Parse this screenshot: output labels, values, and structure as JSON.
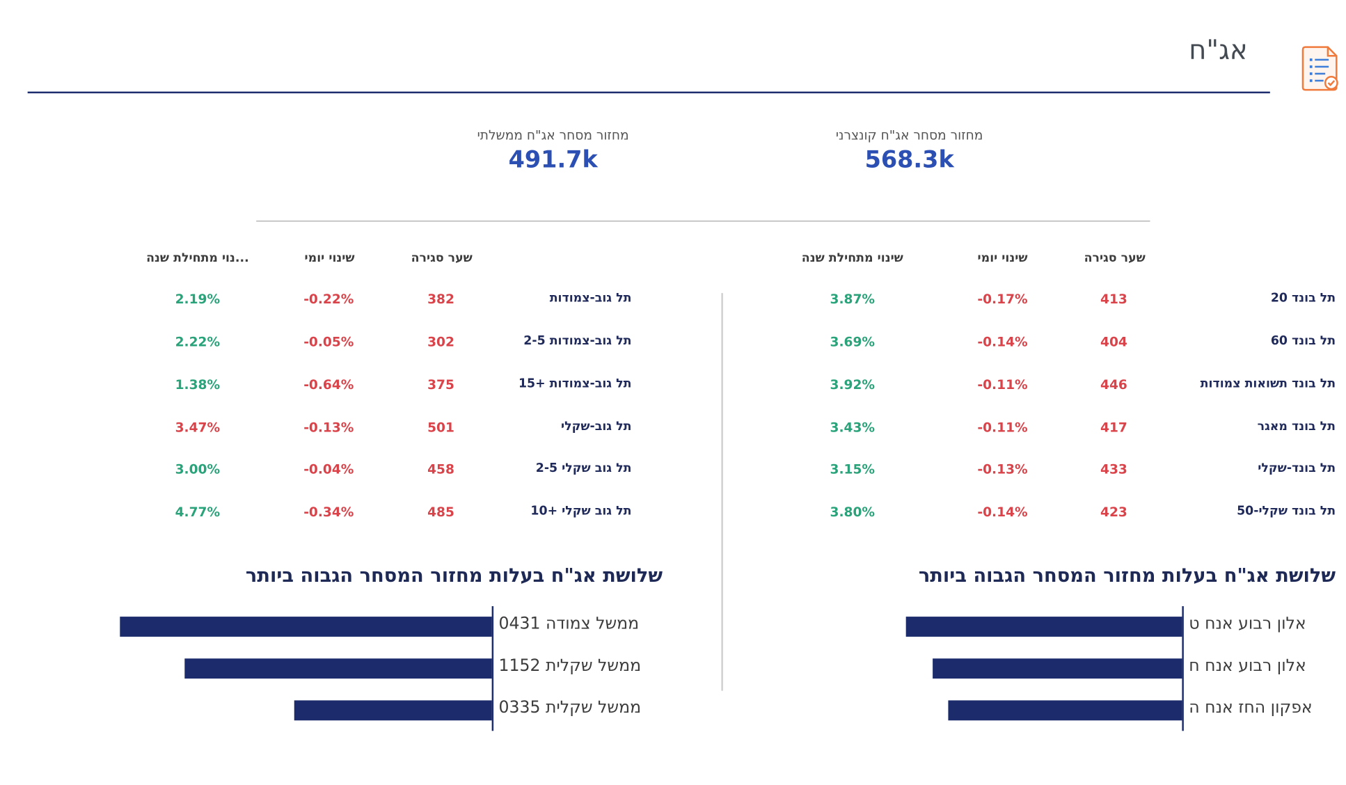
{
  "header": {
    "title": "אג\"ח"
  },
  "kpis": {
    "corporate_label": "מחזור מסחר אג\"ח קונצרני",
    "corporate_value": "568.3k",
    "government_label": "מחזור מסחר אג\"ח ממשלתי",
    "government_value": "491.7k"
  },
  "right_table": {
    "headers": {
      "close": "שער סגירה",
      "daily": "שינוי יומי",
      "ytd": "שינוי מתחילת שנה"
    },
    "rows": [
      {
        "name": "תל בונד 20",
        "close": "413",
        "daily": "-0.17%",
        "ytd": "3.87%"
      },
      {
        "name": "תל בונד 60",
        "close": "404",
        "daily": "-0.14%",
        "ytd": "3.69%"
      },
      {
        "name": "תל בונד תשואות צמודות",
        "close": "446",
        "daily": "-0.11%",
        "ytd": "3.92%"
      },
      {
        "name": "תל בונד מאגר",
        "close": "417",
        "daily": "-0.11%",
        "ytd": "3.43%"
      },
      {
        "name": "תל בונד-שקלי",
        "close": "433",
        "daily": "-0.13%",
        "ytd": "3.15%"
      },
      {
        "name": "תל בונד שקלי-50",
        "close": "423",
        "daily": "-0.14%",
        "ytd": "3.80%"
      }
    ]
  },
  "left_table": {
    "headers": {
      "close": "שער סגירה",
      "daily": "שינוי יומי",
      "ytd": "...נוי מתחילת שנה"
    },
    "rows": [
      {
        "name": "תל גוב-צמודות",
        "close": "382",
        "daily": "-0.22%",
        "ytd": "2.19%"
      },
      {
        "name": "תל גוב-צמודות 2-5",
        "close": "302",
        "daily": "-0.05%",
        "ytd": "2.22%"
      },
      {
        "name": "תל גוב-צמודות +15",
        "close": "375",
        "daily": "-0.64%",
        "ytd": "1.38%"
      },
      {
        "name": "תל גוב-שקלי",
        "close": "501",
        "daily": "-0.13%",
        "ytd": "3.47%"
      },
      {
        "name": "תל גוב שקלי 2-5",
        "close": "458",
        "daily": "-0.04%",
        "ytd": "3.00%"
      },
      {
        "name": "תל גוב שקלי +10",
        "close": "485",
        "daily": "-0.34%",
        "ytd": "4.77%"
      }
    ]
  },
  "top_corporate": {
    "title": "שלושת אג\"ח בעלות מחזור המסחר הגבוה ביותר",
    "bars": [
      {
        "label": "אלון רבוע אנח ט",
        "fraction": 1.0
      },
      {
        "label": "אלון רבוע אנח ח",
        "fraction": 0.902
      },
      {
        "label": "אפקון החז אנח ה",
        "fraction": 0.8467
      }
    ]
  },
  "top_government": {
    "title": "שלושת אג\"ח בעלות מחזור המסחר הגבוה ביותר",
    "bars": [
      {
        "label": "ממשל צמודה 0431",
        "fraction": 1.0
      },
      {
        "label": "ממשל שקלית 1152",
        "fraction": 0.8262
      },
      {
        "label": "ממשל שקלית 0335",
        "fraction": 0.5313
      }
    ]
  },
  "colors": {
    "accent": "#1d2d6e",
    "kpi": "#2b4fb2",
    "negative": "#d9434a",
    "positive": "#2aa37a",
    "bar": "#1b2b6b",
    "icon": "#f07a3c"
  },
  "icons": {
    "header": "report-checklist-icon"
  }
}
